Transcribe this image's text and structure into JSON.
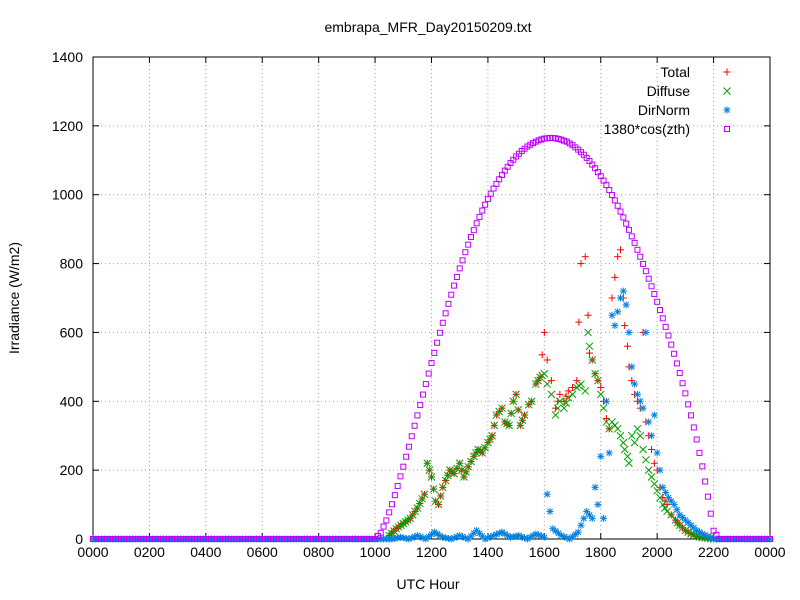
{
  "chart_data": {
    "type": "scatter",
    "title": "embrapa_MFR_Day20150209.txt",
    "xlabel": "UTC Hour",
    "ylabel": "Irradiance (W/m2)",
    "xlim": [
      0,
      24
    ],
    "ylim": [
      0,
      1400
    ],
    "grid": true,
    "legend_position": "top-right",
    "x_ticks": [
      {
        "value": 0,
        "label": "0000"
      },
      {
        "value": 2,
        "label": "0200"
      },
      {
        "value": 4,
        "label": "0400"
      },
      {
        "value": 6,
        "label": "0600"
      },
      {
        "value": 8,
        "label": "0800"
      },
      {
        "value": 10,
        "label": "1000"
      },
      {
        "value": 12,
        "label": "1200"
      },
      {
        "value": 14,
        "label": "1400"
      },
      {
        "value": 16,
        "label": "1600"
      },
      {
        "value": 18,
        "label": "1800"
      },
      {
        "value": 20,
        "label": "2000"
      },
      {
        "value": 22,
        "label": "2200"
      },
      {
        "value": 24,
        "label": "0000"
      }
    ],
    "y_ticks": [
      {
        "value": 0,
        "label": "0"
      },
      {
        "value": 200,
        "label": "200"
      },
      {
        "value": 400,
        "label": "400"
      },
      {
        "value": 600,
        "label": "600"
      },
      {
        "value": 800,
        "label": "800"
      },
      {
        "value": 1000,
        "label": "1000"
      },
      {
        "value": 1200,
        "label": "1200"
      },
      {
        "value": 1400,
        "label": "1400"
      }
    ],
    "series": [
      {
        "name": "Total",
        "marker": "plus",
        "color": "#ff0000",
        "x": [
          10.5,
          10.75,
          11,
          11.25,
          11.5,
          11.75,
          11.85,
          12,
          12.15,
          12.25,
          12.4,
          12.5,
          12.65,
          12.8,
          13,
          13.15,
          13.3,
          13.5,
          13.65,
          13.8,
          14,
          14.15,
          14.3,
          14.5,
          14.6,
          14.75,
          14.9,
          15,
          15.15,
          15.3,
          15.45,
          15.55,
          15.7,
          15.85,
          16,
          16.1,
          16.25,
          16.4,
          16.55,
          16.7,
          16.85,
          17,
          17.15,
          17.3,
          17.45,
          17.55,
          17.6,
          17.7,
          17.8,
          17.9,
          18,
          18.1,
          18.2,
          18.3,
          18.4,
          18.5,
          18.6,
          18.7,
          18.8,
          18.85,
          18.95,
          19,
          19.1,
          19.2,
          19.3,
          19.4,
          19.5,
          19.6,
          19.7,
          19.8,
          19.9,
          20,
          20.1,
          20.2,
          20.35,
          20.5,
          20.65,
          20.8,
          21,
          21.2,
          21.4,
          21.6,
          21.8,
          22
        ],
        "y": [
          10,
          30,
          45,
          60,
          90,
          130,
          220,
          180,
          110,
          100,
          150,
          170,
          200,
          190,
          220,
          180,
          210,
          240,
          260,
          250,
          280,
          300,
          360,
          380,
          340,
          330,
          400,
          420,
          330,
          360,
          390,
          400,
          450,
          470,
          600,
          520,
          460,
          380,
          420,
          400,
          430,
          440,
          460,
          800,
          820,
          650,
          540,
          520,
          480,
          460,
          440,
          400,
          350,
          320,
          700,
          760,
          820,
          840,
          700,
          620,
          560,
          500,
          460,
          420,
          400,
          380,
          600,
          340,
          300,
          260,
          220,
          200,
          150,
          120,
          100,
          70,
          55,
          40,
          25,
          15,
          8,
          4,
          2,
          0
        ]
      },
      {
        "name": "Diffuse",
        "marker": "x",
        "color": "#00a000",
        "x": [
          10.5,
          10.75,
          11,
          11.25,
          11.5,
          11.75,
          11.85,
          12,
          12.15,
          12.25,
          12.4,
          12.5,
          12.65,
          12.8,
          13,
          13.15,
          13.3,
          13.5,
          13.65,
          13.8,
          14,
          14.15,
          14.3,
          14.5,
          14.6,
          14.75,
          14.9,
          15,
          15.15,
          15.3,
          15.45,
          15.55,
          15.7,
          15.85,
          16,
          16.1,
          16.25,
          16.4,
          16.55,
          16.7,
          16.85,
          17,
          17.15,
          17.3,
          17.45,
          17.55,
          17.6,
          17.7,
          17.8,
          17.9,
          18,
          18.1,
          18.2,
          18.3,
          18.4,
          18.5,
          18.6,
          18.7,
          18.8,
          18.85,
          18.95,
          19,
          19.1,
          19.2,
          19.3,
          19.4,
          19.5,
          19.6,
          19.7,
          19.8,
          19.9,
          20,
          20.1,
          20.2,
          20.35,
          20.5,
          20.65,
          20.8,
          21,
          21.2,
          21.4,
          21.6,
          21.8,
          22
        ],
        "y": [
          10,
          30,
          45,
          60,
          90,
          130,
          220,
          180,
          110,
          100,
          150,
          170,
          200,
          190,
          220,
          180,
          210,
          240,
          260,
          250,
          280,
          300,
          360,
          380,
          340,
          330,
          400,
          420,
          330,
          360,
          390,
          400,
          450,
          470,
          480,
          450,
          420,
          360,
          400,
          380,
          410,
          420,
          440,
          450,
          430,
          600,
          560,
          520,
          480,
          460,
          420,
          380,
          340,
          320,
          340,
          330,
          320,
          300,
          280,
          260,
          240,
          220,
          300,
          280,
          320,
          300,
          260,
          230,
          200,
          180,
          160,
          140,
          120,
          100,
          80,
          70,
          55,
          40,
          25,
          15,
          8,
          4,
          2,
          0
        ]
      },
      {
        "name": "DirNorm",
        "marker": "star",
        "color": "#0080e0",
        "x": [
          0,
          10.3,
          10.6,
          10.9,
          11.2,
          11.5,
          11.8,
          12.1,
          12.4,
          12.7,
          13,
          13.3,
          13.6,
          13.9,
          14.2,
          14.5,
          14.8,
          15.1,
          15.4,
          15.7,
          16,
          16.1,
          16.3,
          16.6,
          16.9,
          17.2,
          17.5,
          17.7,
          17.8,
          17.9,
          18,
          18.1,
          18.2,
          18.3,
          18.4,
          18.5,
          18.6,
          18.7,
          18.8,
          18.9,
          19,
          19.1,
          19.2,
          19.3,
          19.4,
          19.5,
          19.6,
          19.7,
          19.8,
          19.9,
          20,
          20.1,
          20.2,
          20.4,
          20.6,
          20.8,
          21,
          21.2,
          21.4,
          21.6,
          21.8,
          22,
          24
        ],
        "y": [
          0,
          0,
          0,
          5,
          0,
          10,
          0,
          20,
          5,
          0,
          10,
          0,
          25,
          0,
          10,
          20,
          5,
          10,
          0,
          15,
          5,
          130,
          30,
          10,
          0,
          20,
          80,
          60,
          150,
          100,
          240,
          60,
          400,
          250,
          650,
          620,
          660,
          700,
          720,
          680,
          600,
          500,
          450,
          420,
          400,
          380,
          600,
          340,
          300,
          360,
          250,
          200,
          150,
          120,
          100,
          70,
          55,
          40,
          25,
          15,
          8,
          0,
          0
        ]
      },
      {
        "name": "1380*cos(zth)",
        "marker": "square",
        "color": "#c000ff",
        "x": [
          0,
          10,
          10.2,
          10.4,
          10.6,
          10.8,
          11,
          11.2,
          11.4,
          11.6,
          11.8,
          12,
          12.2,
          12.4,
          12.6,
          12.8,
          13,
          13.2,
          13.4,
          13.6,
          13.8,
          14,
          14.2,
          14.4,
          14.6,
          14.8,
          15,
          15.2,
          15.4,
          15.6,
          15.8,
          16,
          16.2,
          16.4,
          16.6,
          16.8,
          17,
          17.2,
          17.4,
          17.6,
          17.8,
          18,
          18.2,
          18.4,
          18.6,
          18.8,
          19,
          19.2,
          19.4,
          19.6,
          19.8,
          20,
          20.2,
          20.4,
          20.6,
          20.8,
          21,
          21.2,
          21.4,
          21.6,
          21.8,
          22,
          22.2,
          24
        ],
        "y": [
          0,
          0,
          18,
          54,
          101,
          154,
          210,
          268,
          329,
          389,
          450,
          511,
          570,
          628,
          683,
          736,
          786,
          833,
          877,
          917,
          954,
          988,
          1018,
          1045,
          1070,
          1092,
          1111,
          1127,
          1140,
          1150,
          1158,
          1163,
          1165,
          1164,
          1160,
          1154,
          1144,
          1131,
          1116,
          1098,
          1077,
          1054,
          1028,
          999,
          968,
          934,
          898,
          860,
          820,
          778,
          734,
          689,
          641,
          591,
          538,
          482,
          423,
          359,
          289,
          211,
          123,
          24,
          0,
          0
        ]
      }
    ]
  }
}
